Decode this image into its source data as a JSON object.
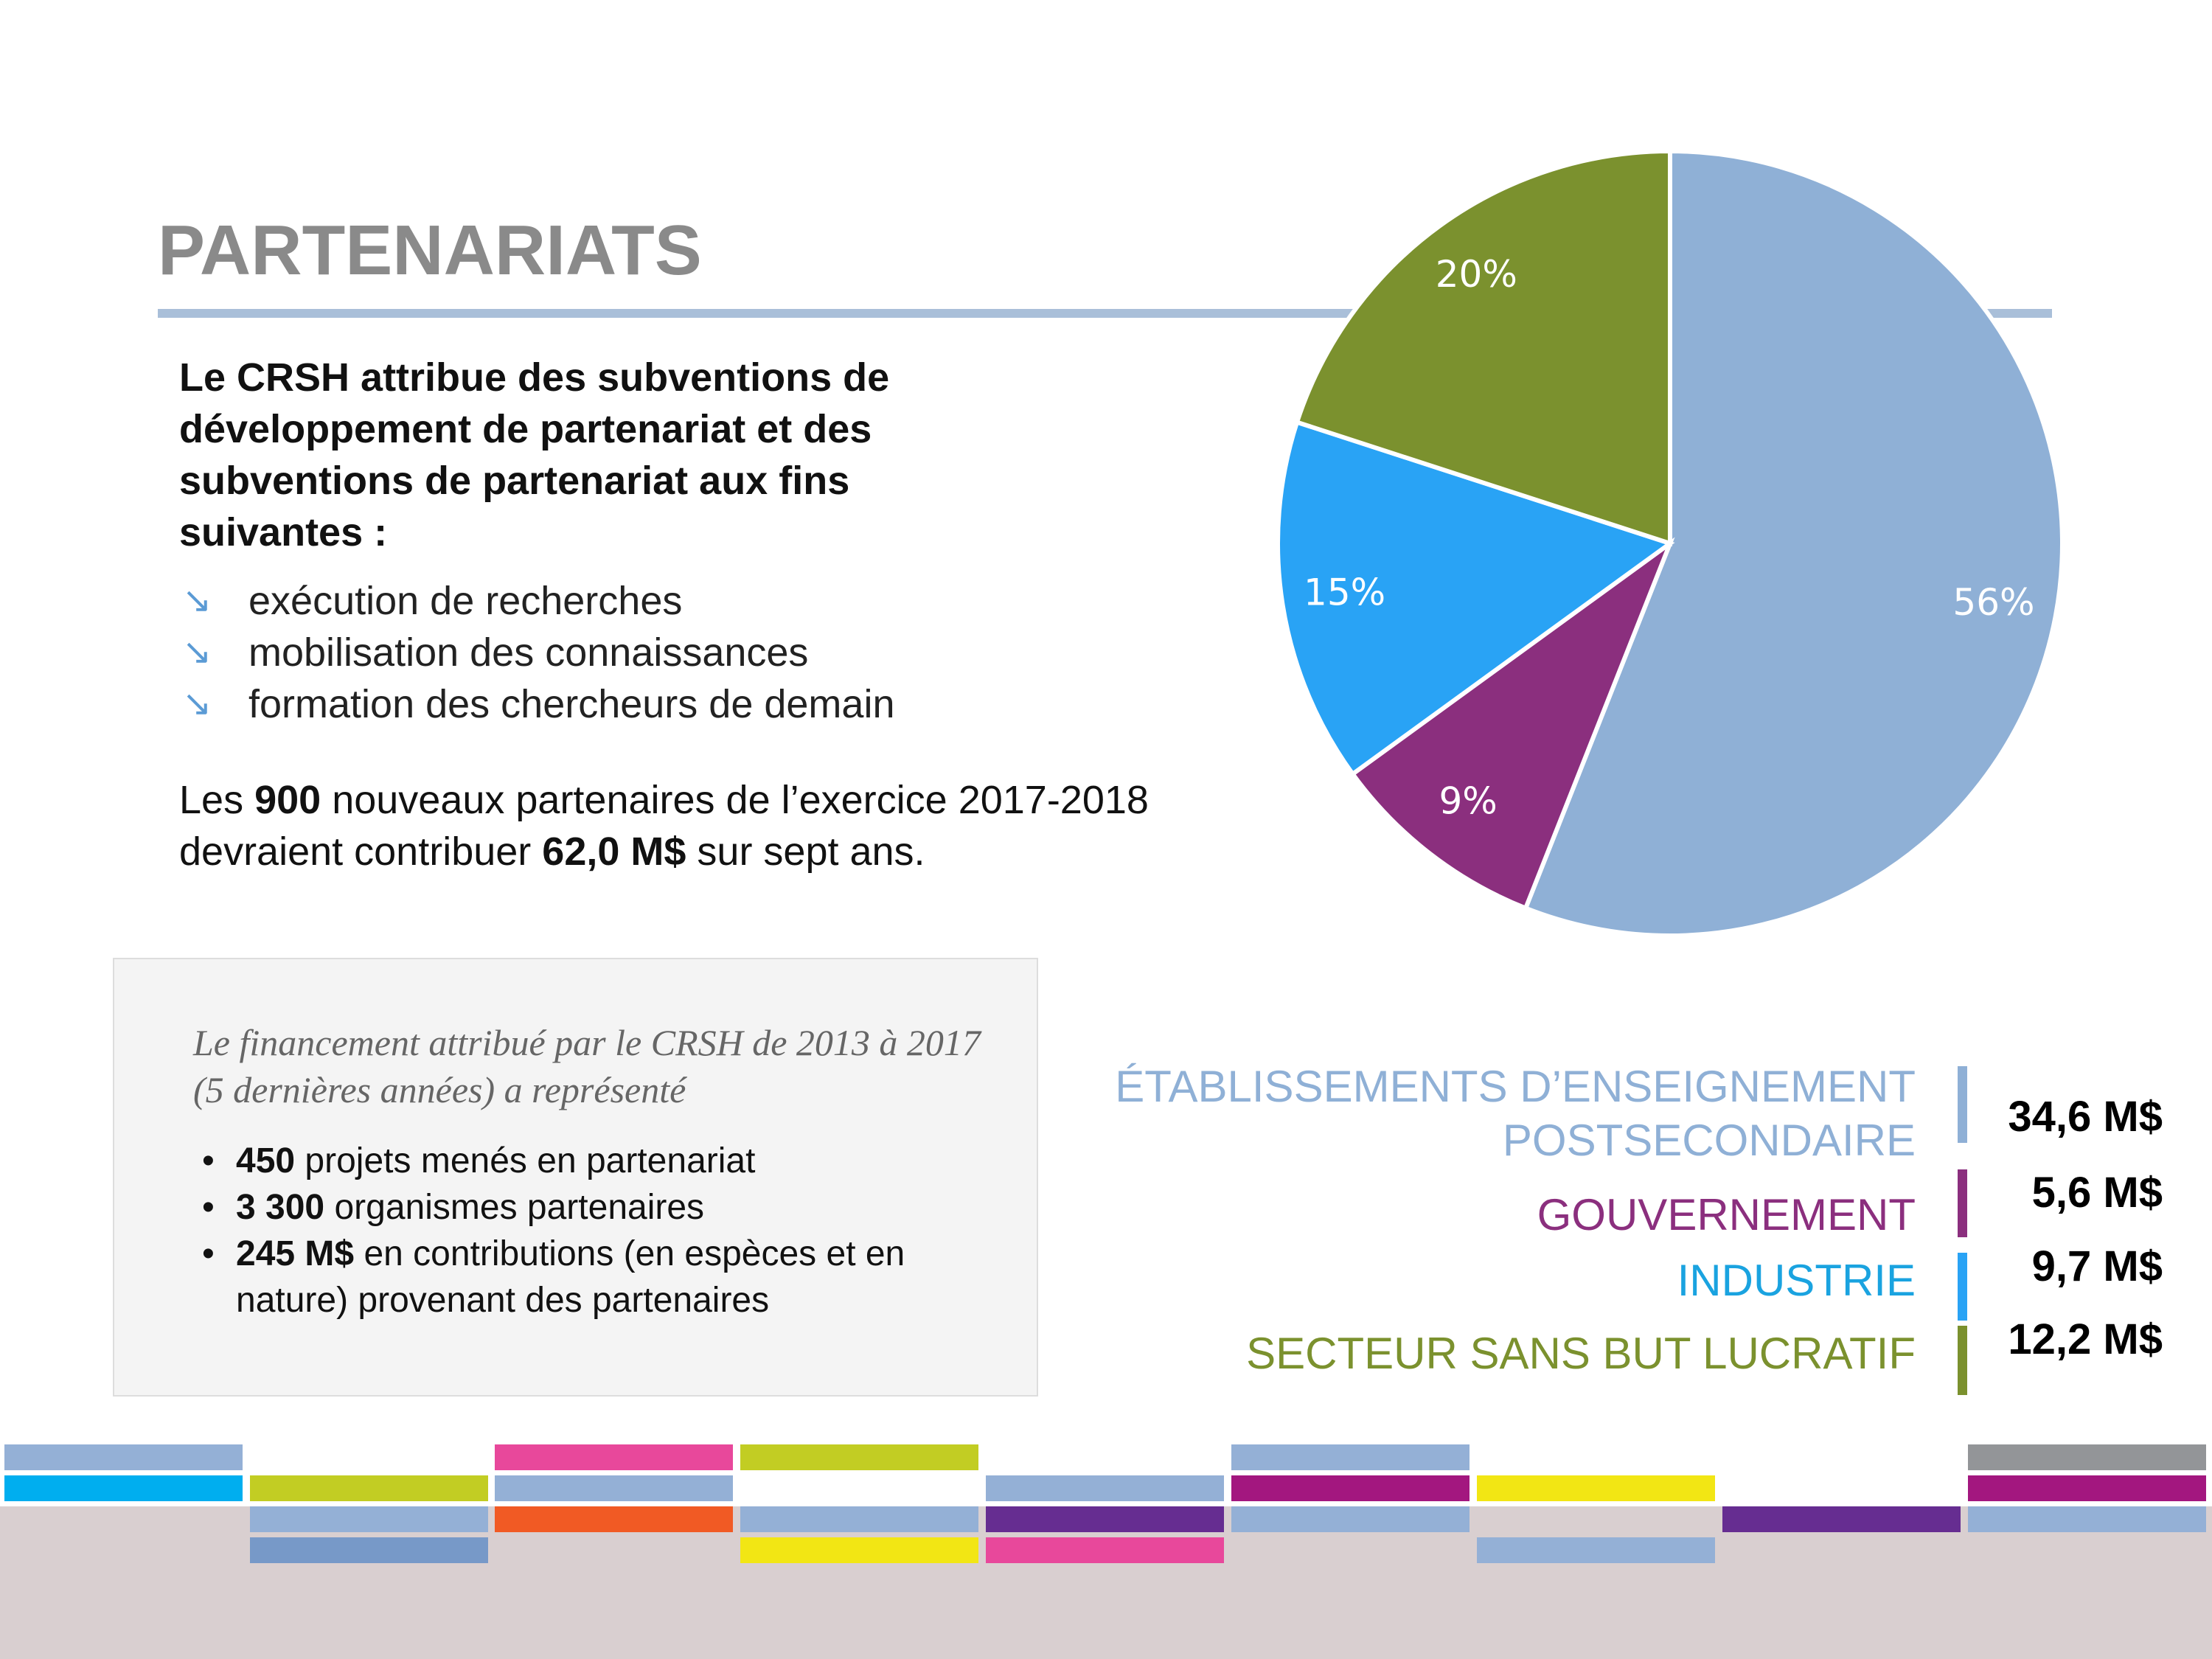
{
  "title": "PARTENARIATS",
  "intro": "Le CRSH attribue des subventions de développement de partenariat et des subventions de partenariat aux fins suivantes :",
  "purposes": [
    "exécution de recherches",
    "mobilisation des connaissances",
    "formation des chercheurs de demain"
  ],
  "partners_note": [
    "Les ",
    "900",
    " nouveaux partenaires de l’exercice 2017-2018 devraient contribuer ",
    "62,0 M$",
    " sur sept ans."
  ],
  "box": {
    "heading": "Le financement attribué par le CRSH de 2013 à 2017 (5 dernières années) a représenté",
    "items": [
      [
        "450",
        " projets menés en partenariat"
      ],
      [
        "3 300",
        " organismes partenaires"
      ],
      [
        "245 M$",
        " en contributions (en espèces et en nature) provenant des partenaires"
      ]
    ]
  },
  "chart_data": {
    "type": "pie",
    "categories": [
      "ÉTABLISSEMENTS D’ENSEIGNEMENT\nPOSTSECONDAIRE",
      "GOUVERNEMENT",
      "INDUSTRIE",
      "SECTEUR SANS BUT LUCRATIF"
    ],
    "values": [
      56,
      9,
      15,
      20
    ],
    "value_labels": [
      "56%",
      "9%",
      "15%",
      "20%"
    ],
    "amounts": [
      "34,6 M$",
      "5,6 M$",
      "9,7 M$",
      "12,2 M$"
    ],
    "colors": [
      "#8fb0d6",
      "#8b2f7e",
      "#29a3f5",
      "#7b912e"
    ],
    "legend_text_colors": [
      "#8fb0d6",
      "#8b2f7e",
      "#1aa3e0",
      "#7b912e"
    ]
  }
}
